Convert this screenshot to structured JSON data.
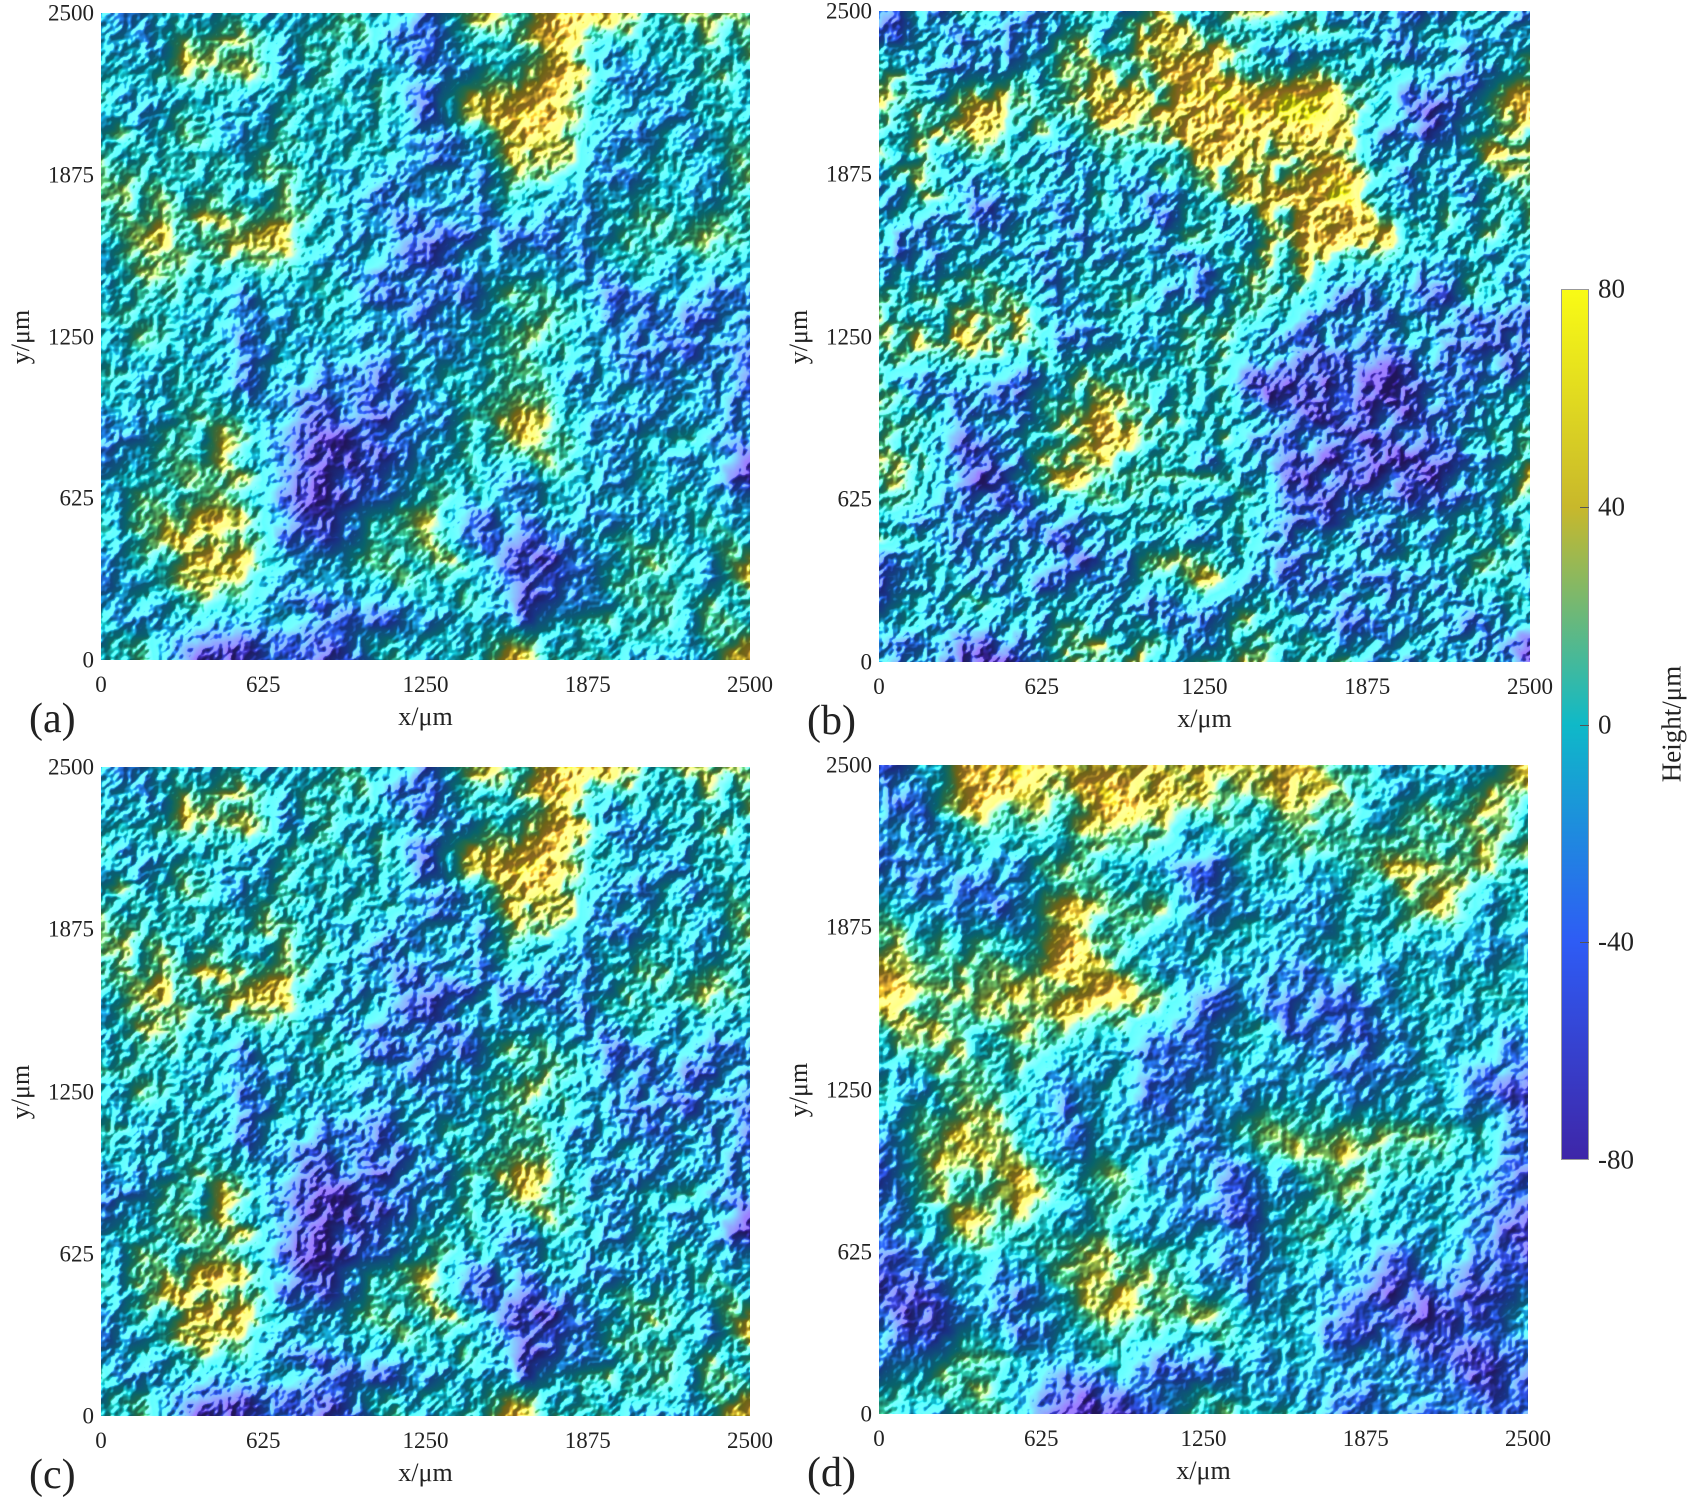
{
  "chart_data": {
    "type": "heatmap",
    "colormap": "parula",
    "colorbar": {
      "label": "Height/μm",
      "range": [
        -80,
        80
      ],
      "ticks": [
        "80",
        "40",
        "0",
        "-40",
        "-80"
      ],
      "colors": [
        "#3e26a8",
        "#2e5cf5",
        "#0fb9c8",
        "#c8b82b",
        "#f9fb15"
      ]
    },
    "panels": [
      {
        "label": "(a)",
        "xlabel": "x/μm",
        "ylabel": "y/μm",
        "xlim": [
          0,
          2500
        ],
        "ylim": [
          0,
          2500
        ],
        "xticks": [
          "0",
          "625",
          "1250",
          "1875",
          "2500"
        ],
        "yticks": [
          "0",
          "625",
          "1250",
          "1875",
          "2500"
        ]
      },
      {
        "label": "(b)",
        "xlabel": "x/μm",
        "ylabel": "y/μm",
        "xlim": [
          0,
          2500
        ],
        "ylim": [
          0,
          2500
        ],
        "xticks": [
          "0",
          "625",
          "1250",
          "1875",
          "2500"
        ],
        "yticks": [
          "0",
          "625",
          "1250",
          "1875",
          "2500"
        ]
      },
      {
        "label": "(c)",
        "xlabel": "x/μm",
        "ylabel": "y/μm",
        "xlim": [
          0,
          2500
        ],
        "ylim": [
          0,
          2500
        ],
        "xticks": [
          "0",
          "625",
          "1250",
          "1875",
          "2500"
        ],
        "yticks": [
          "0",
          "625",
          "1250",
          "1875",
          "2500"
        ]
      },
      {
        "label": "(d)",
        "xlabel": "x/μm",
        "ylabel": "y/μm",
        "xlim": [
          0,
          2500
        ],
        "ylim": [
          0,
          2500
        ],
        "xticks": [
          "0",
          "625",
          "1250",
          "1875",
          "2500"
        ],
        "yticks": [
          "0",
          "625",
          "1250",
          "1875",
          "2500"
        ]
      }
    ]
  }
}
